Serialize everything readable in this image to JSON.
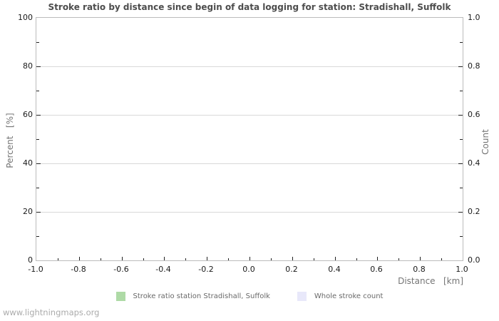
{
  "chart_data": {
    "type": "bar",
    "title": "Stroke ratio by distance since begin of data logging for station: Stradishall, Suffolk",
    "x_axis": {
      "label": "Distance   [km]",
      "min": -1.0,
      "max": 1.0,
      "tick_labels": [
        "-1.0",
        "-0.8",
        "-0.6",
        "-0.4",
        "-0.2",
        "0.0",
        "0.2",
        "0.4",
        "0.6",
        "0.8",
        "1.0"
      ],
      "minor_tick_step": 0.1
    },
    "y_axis_left": {
      "label": "Percent   [%]",
      "min": 0,
      "max": 100,
      "tick_labels": [
        "0",
        "20",
        "40",
        "60",
        "80",
        "100"
      ],
      "minor_tick_step": 10
    },
    "y_axis_right": {
      "label": "Count",
      "min": 0.0,
      "max": 1.0,
      "tick_labels": [
        "0.0",
        "0.2",
        "0.4",
        "0.6",
        "0.8",
        "1.0"
      ],
      "minor_tick_step": 0.1
    },
    "grid": "horizontal-major-only",
    "legend_position": "bottom-center",
    "series": [
      {
        "name": "Stroke ratio station Stradishall, Suffolk",
        "color": "#aedaa6",
        "values": []
      },
      {
        "name": "Whole stroke count",
        "color": "#e8e8fa",
        "values": []
      }
    ]
  },
  "legend": {
    "items": [
      {
        "label": "Stroke ratio station Stradishall, Suffolk",
        "color": "#aedaa6"
      },
      {
        "label": "Whole stroke count",
        "color": "#e8e8fa"
      }
    ]
  },
  "watermark": "www.lightningmaps.org",
  "colors": {
    "background": "#ffffff",
    "title": "#4d4d4d",
    "plot_border": "#bcbcbc",
    "gridline": "#d9d9d9",
    "tick": "#222222",
    "tick_label": "#1a1a1a",
    "axis_label": "#757575",
    "legend_label": "#696969",
    "watermark": "#ababab"
  }
}
